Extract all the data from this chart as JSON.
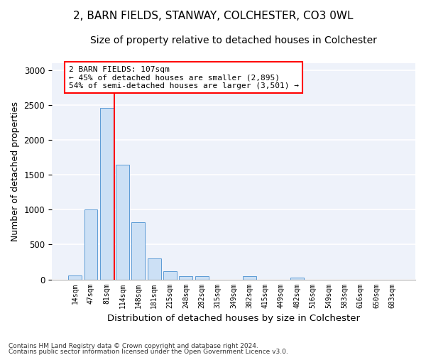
{
  "title1": "2, BARN FIELDS, STANWAY, COLCHESTER, CO3 0WL",
  "title2": "Size of property relative to detached houses in Colchester",
  "xlabel": "Distribution of detached houses by size in Colchester",
  "ylabel": "Number of detached properties",
  "footnote1": "Contains HM Land Registry data © Crown copyright and database right 2024.",
  "footnote2": "Contains public sector information licensed under the Open Government Licence v3.0.",
  "bar_labels": [
    "14sqm",
    "47sqm",
    "81sqm",
    "114sqm",
    "148sqm",
    "181sqm",
    "215sqm",
    "248sqm",
    "282sqm",
    "315sqm",
    "349sqm",
    "382sqm",
    "415sqm",
    "449sqm",
    "482sqm",
    "516sqm",
    "549sqm",
    "583sqm",
    "616sqm",
    "650sqm",
    "683sqm"
  ],
  "bar_values": [
    60,
    1000,
    2460,
    1640,
    820,
    300,
    120,
    50,
    45,
    0,
    0,
    45,
    0,
    0,
    30,
    0,
    0,
    0,
    0,
    0,
    0
  ],
  "bar_color": "#cce0f5",
  "bar_edge_color": "#5b9bd5",
  "red_line_index": 2,
  "annotation_line1": "2 BARN FIELDS: 107sqm",
  "annotation_line2": "← 45% of detached houses are smaller (2,895)",
  "annotation_line3": "54% of semi-detached houses are larger (3,501) →",
  "annotation_box_color": "white",
  "annotation_box_edge_color": "red",
  "ylim": [
    0,
    3100
  ],
  "yticks": [
    0,
    500,
    1000,
    1500,
    2000,
    2500,
    3000
  ],
  "background_color": "#eef2fa",
  "grid_color": "white",
  "title1_fontsize": 11,
  "title2_fontsize": 10,
  "xlabel_fontsize": 9.5,
  "ylabel_fontsize": 9
}
